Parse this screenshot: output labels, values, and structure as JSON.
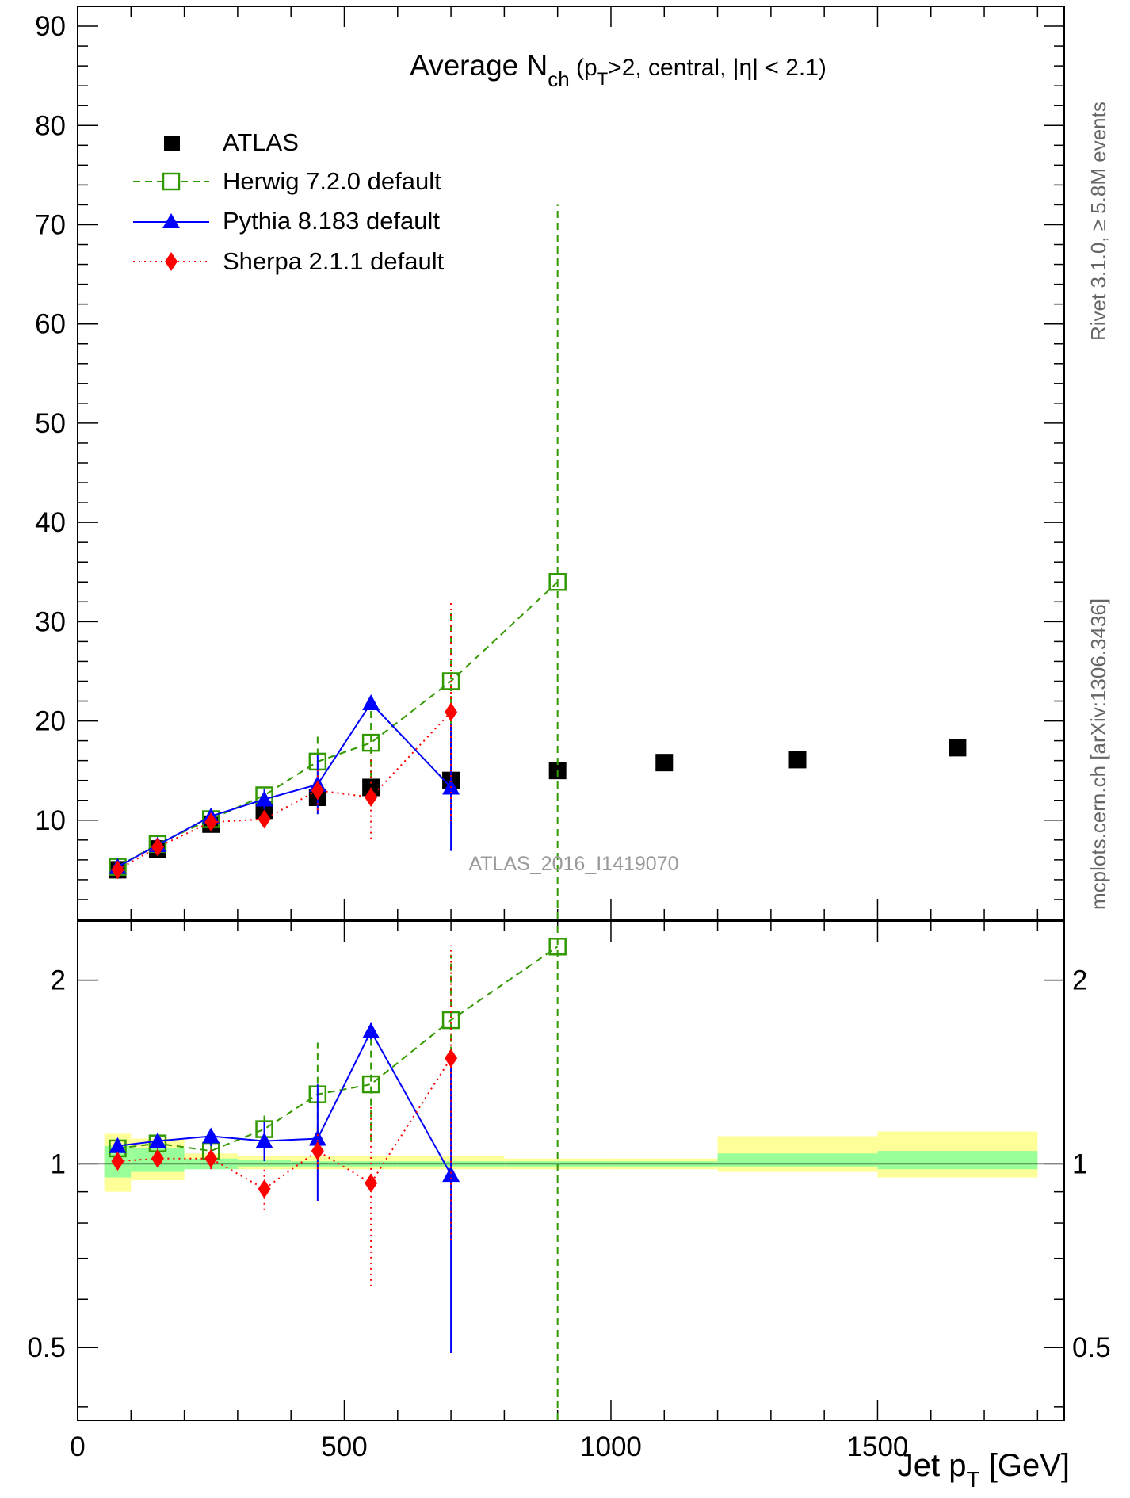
{
  "chart_data": [
    {
      "type": "scatter",
      "panel": "main",
      "title": "Average N",
      "title_sub": "ch",
      "title_rest_1": " (p",
      "title_sub_2": "T",
      "title_rest_2": ">2, central, |η| < 2.1)",
      "ylabel": "",
      "xlim": [
        0,
        1850
      ],
      "ylim": [
        0,
        92
      ],
      "yticks": [
        {
          "value": 10,
          "label": "10"
        },
        {
          "value": 20,
          "label": "20"
        },
        {
          "value": 30,
          "label": "30"
        },
        {
          "value": 40,
          "label": "40"
        },
        {
          "value": 50,
          "label": "50"
        },
        {
          "value": 60,
          "label": "60"
        },
        {
          "value": 70,
          "label": "70"
        },
        {
          "value": 80,
          "label": "80"
        },
        {
          "value": 90,
          "label": "90"
        }
      ],
      "legend_position": "top-left",
      "grid": false,
      "watermark": "ATLAS_2016_I1419070",
      "series": [
        {
          "name": "ATLAS",
          "color": "#000000",
          "marker": "square-filled",
          "line": "none",
          "x": [
            75,
            150,
            250,
            350,
            450,
            550,
            700,
            900,
            1100,
            1350,
            1650
          ],
          "y": [
            5.0,
            7.1,
            9.6,
            11.0,
            12.3,
            13.3,
            14.0,
            15.0,
            15.8,
            16.1,
            17.3
          ]
        },
        {
          "name": "Herwig 7.2.0 default",
          "color": "#339900",
          "marker": "square-open",
          "line": "dashed",
          "x": [
            75,
            150,
            250,
            350,
            450,
            550,
            700,
            900
          ],
          "y": [
            5.3,
            7.6,
            10.1,
            12.5,
            15.9,
            17.8,
            24.0,
            34.0
          ],
          "err": [
            0.3,
            0.4,
            0.5,
            0.7,
            3.0,
            3.5,
            7.0,
            38.0
          ]
        },
        {
          "name": "Pythia 8.183 default",
          "color": "#0000ff",
          "marker": "triangle-filled",
          "line": "solid",
          "x": [
            75,
            150,
            250,
            350,
            450,
            550,
            700
          ],
          "y": [
            5.3,
            7.5,
            10.4,
            12.1,
            13.6,
            21.8,
            13.3
          ],
          "err": [
            0.3,
            0.4,
            0.5,
            1.0,
            3.0,
            0.7,
            6.4
          ]
        },
        {
          "name": "Sherpa 2.1.1 default",
          "color": "#ff0000",
          "marker": "diamond-filled",
          "line": "dotted",
          "x": [
            75,
            150,
            250,
            350,
            450,
            550,
            700
          ],
          "y": [
            5.0,
            7.3,
            9.8,
            10.1,
            13.0,
            12.3,
            20.9
          ],
          "err": [
            0.3,
            0.4,
            0.5,
            0.8,
            2.0,
            4.2,
            11.0
          ]
        }
      ]
    },
    {
      "type": "scatter",
      "panel": "ratio",
      "xlabel": "Jet p",
      "xlabel_sub": "T",
      "xlabel_rest": " [GeV]",
      "xlim": [
        0,
        1850
      ],
      "ylim": [
        0.38,
        2.5
      ],
      "scale_y": "log",
      "xticks": [
        {
          "value": 0,
          "label": "0"
        },
        {
          "value": 500,
          "label": "500"
        },
        {
          "value": 1000,
          "label": "1000"
        },
        {
          "value": 1500,
          "label": "1500"
        }
      ],
      "yticks": [
        {
          "value": 0.5,
          "label": "0.5"
        },
        {
          "value": 1,
          "label": "1"
        },
        {
          "value": 2,
          "label": "2"
        }
      ],
      "reference": 1,
      "bands": {
        "bins": [
          [
            50,
            100
          ],
          [
            100,
            200
          ],
          [
            200,
            300
          ],
          [
            300,
            400
          ],
          [
            400,
            500
          ],
          [
            500,
            600
          ],
          [
            600,
            800
          ],
          [
            800,
            1000
          ],
          [
            1000,
            1200
          ],
          [
            1200,
            1500
          ],
          [
            1500,
            1800
          ]
        ],
        "green": [
          [
            0.95,
            1.07
          ],
          [
            0.97,
            1.06
          ],
          [
            0.98,
            1.02
          ],
          [
            0.99,
            1.015
          ],
          [
            0.99,
            1.01
          ],
          [
            0.99,
            1.01
          ],
          [
            0.99,
            1.01
          ],
          [
            0.99,
            1.01
          ],
          [
            0.99,
            1.01
          ],
          [
            0.99,
            1.04
          ],
          [
            0.98,
            1.05
          ]
        ],
        "yellow": [
          [
            0.9,
            1.12
          ],
          [
            0.94,
            1.1
          ],
          [
            0.98,
            1.04
          ],
          [
            0.98,
            1.03
          ],
          [
            0.98,
            1.03
          ],
          [
            0.98,
            1.03
          ],
          [
            0.98,
            1.03
          ],
          [
            0.98,
            1.02
          ],
          [
            0.98,
            1.02
          ],
          [
            0.97,
            1.11
          ],
          [
            0.95,
            1.13
          ]
        ]
      },
      "series": [
        {
          "name": "Herwig 7.2.0 default",
          "color": "#339900",
          "marker": "square-open",
          "line": "dashed",
          "x": [
            75,
            150,
            250,
            350,
            450,
            550,
            700,
            900
          ],
          "y": [
            1.06,
            1.08,
            1.05,
            1.14,
            1.3,
            1.35,
            1.72,
            2.27
          ],
          "elo": [
            1.02,
            1.04,
            1.0,
            1.07,
            1.08,
            1.09,
            1.21,
            0.38
          ],
          "ehi": [
            1.1,
            1.12,
            1.09,
            1.2,
            1.58,
            1.63,
            2.2,
            2.5
          ]
        },
        {
          "name": "Pythia 8.183 default",
          "color": "#0000ff",
          "marker": "triangle-filled",
          "line": "solid",
          "x": [
            75,
            150,
            250,
            350,
            450,
            550,
            700
          ],
          "y": [
            1.07,
            1.09,
            1.11,
            1.09,
            1.1,
            1.65,
            0.96
          ],
          "elo": [
            1.05,
            1.06,
            1.07,
            1.01,
            0.87,
            1.6,
            0.49
          ],
          "ehi": [
            1.1,
            1.12,
            1.14,
            1.17,
            1.35,
            1.7,
            1.44
          ]
        },
        {
          "name": "Sherpa 2.1.1 default",
          "color": "#ff0000",
          "marker": "diamond-filled",
          "line": "dotted",
          "x": [
            75,
            150,
            250,
            350,
            450,
            550,
            700
          ],
          "y": [
            1.01,
            1.02,
            1.02,
            0.91,
            1.05,
            0.93,
            1.49
          ],
          "elo": [
            0.99,
            0.99,
            0.98,
            0.84,
            0.98,
            0.63,
            0.75
          ],
          "ehi": [
            1.03,
            1.05,
            1.06,
            0.98,
            1.12,
            1.25,
            2.28
          ]
        }
      ]
    }
  ],
  "side_text": {
    "rivet": "Rivet 3.1.0, ≥ 5.8M events",
    "mcplots": "mcplots.cern.ch [arXiv:1306.3436]"
  }
}
